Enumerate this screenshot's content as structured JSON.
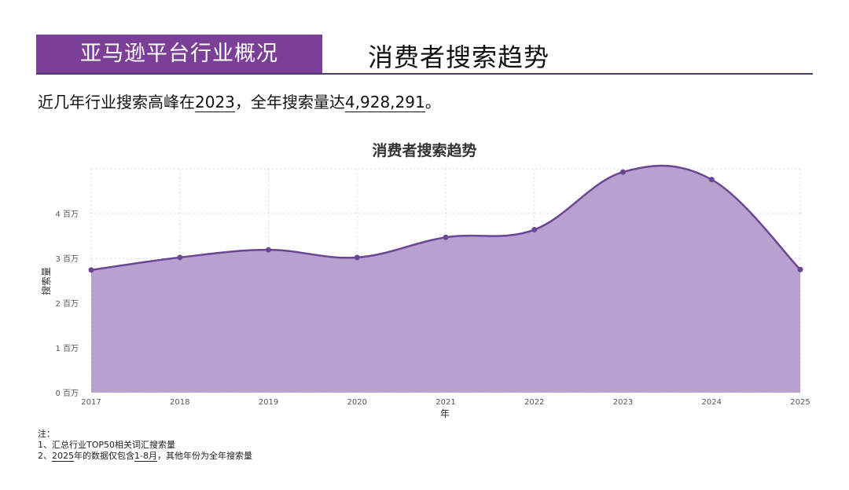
{
  "header": {
    "tag": "亚马逊平台行业概况",
    "title": "消费者搜索趋势"
  },
  "summary": {
    "prefix": "近几年行业搜索高峰在",
    "peak_year": "2023",
    "middle": "，全年搜索量达",
    "peak_value": "4,928,291",
    "suffix": "。"
  },
  "notes": {
    "heading": "注：",
    "line1_num": "1、",
    "line1": "汇总行业TOP50相关词汇搜索量",
    "line2_num": "2、",
    "line2_year": "2025",
    "line2_mid": "年的数据仅包含",
    "line2_range": "1-8月",
    "line2_end": "，其他年份为全年搜索量"
  },
  "colors": {
    "accent": "#7b3f98",
    "area_fill": "#b8a0cf",
    "line": "#6d4596"
  },
  "chart_data": {
    "type": "area",
    "title": "消费者搜索趋势",
    "xlabel": "年",
    "ylabel": "搜索量",
    "x": [
      "2017",
      "2018",
      "2019",
      "2020",
      "2021",
      "2022",
      "2023",
      "2024",
      "2025"
    ],
    "values": [
      2740000,
      3020000,
      3190000,
      3020000,
      3470000,
      3640000,
      4928291,
      4760000,
      2750000
    ],
    "ylim": [
      0,
      5000000
    ],
    "yticks": [
      0,
      1000000,
      2000000,
      3000000,
      4000000
    ],
    "ytick_labels": [
      "0 百万",
      "1 百万",
      "2 百万",
      "3 百万",
      "4 百万"
    ],
    "grid": true
  }
}
